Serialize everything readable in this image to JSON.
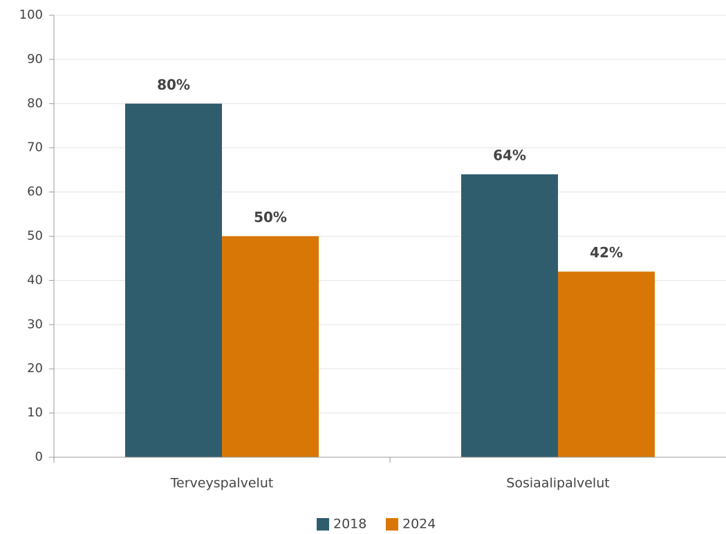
{
  "chart_data": {
    "type": "bar",
    "categories": [
      "Terveyspalvelut",
      "Sosiaalipalvelut"
    ],
    "series": [
      {
        "name": "2018",
        "color": "#2f5d6e",
        "values": [
          80,
          64
        ],
        "value_labels": [
          "80%",
          "64%"
        ]
      },
      {
        "name": "2024",
        "color": "#d97706",
        "values": [
          50,
          42
        ],
        "value_labels": [
          "50%",
          "42%"
        ]
      }
    ],
    "ylim": [
      0,
      100
    ],
    "yticks": [
      0,
      10,
      20,
      30,
      40,
      50,
      60,
      70,
      80,
      90,
      100
    ],
    "grid": true,
    "legend": "bottom"
  }
}
